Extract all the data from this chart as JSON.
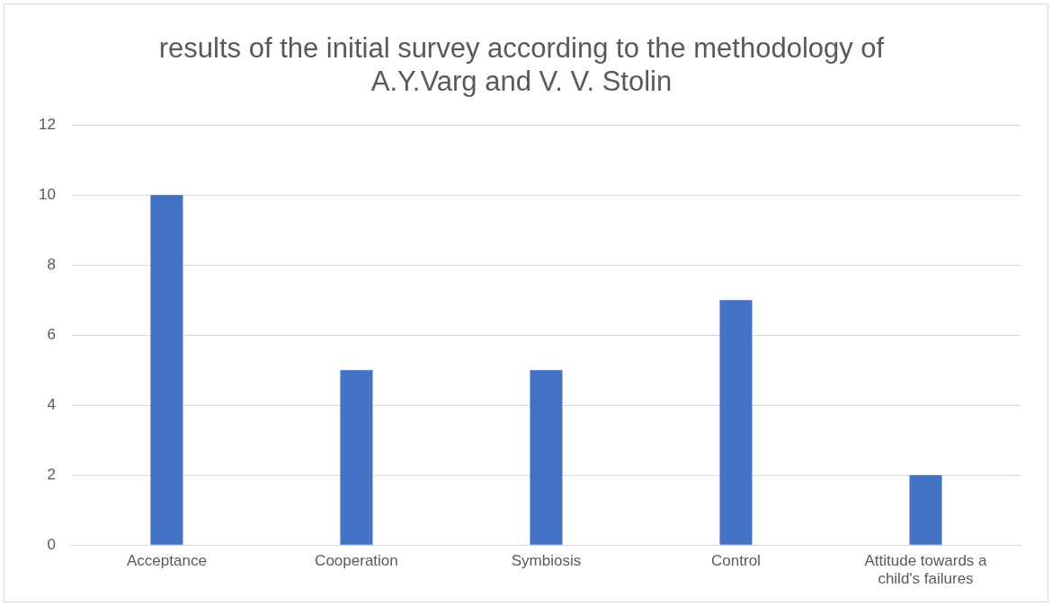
{
  "chart_data": {
    "type": "bar",
    "title": "results of the initial survey according to the methodology of A.Y.Varg and V. V. Stolin",
    "categories": [
      "Acceptance",
      "Cooperation",
      "Symbiosis",
      "Control",
      "Attitude towards a child's failures"
    ],
    "values": [
      10,
      5,
      5,
      7,
      2
    ],
    "color": "#4472c4",
    "ylim": [
      0,
      12
    ],
    "yticks": [
      0,
      2,
      4,
      6,
      8,
      10,
      12
    ],
    "grid": "y",
    "legend": false
  }
}
